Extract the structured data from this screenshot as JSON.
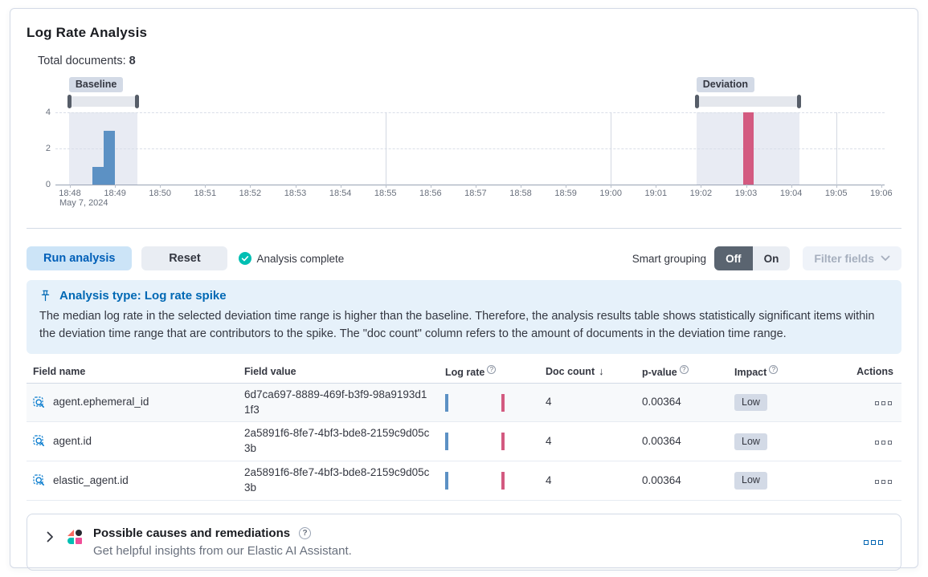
{
  "app": {
    "title": "Log Rate Analysis"
  },
  "summary": {
    "total_documents_label": "Total documents:",
    "total_documents_value": "8"
  },
  "chart_data": {
    "type": "bar",
    "x_ticks": [
      "18:48",
      "18:49",
      "18:50",
      "18:51",
      "18:52",
      "18:53",
      "18:54",
      "18:55",
      "18:56",
      "18:57",
      "18:58",
      "18:59",
      "19:00",
      "19:01",
      "19:02",
      "19:03",
      "19:04",
      "19:05",
      "19:06"
    ],
    "x_axis_date_label": "May 7, 2024",
    "y_ticks": [
      0,
      2,
      4
    ],
    "ylim": [
      0,
      4
    ],
    "grid": {
      "horizontal": "dashed at 2 and 4",
      "vertical": "solid at 5-minute marks"
    },
    "vertical_gridline_minutes": [
      7,
      12,
      17
    ],
    "series": [
      {
        "name": "baseline",
        "color": "#5c91c4",
        "bars": [
          {
            "x_min": 0.5,
            "width_min": 0.24,
            "value": 1
          },
          {
            "x_min": 0.75,
            "width_min": 0.24,
            "value": 3
          }
        ]
      },
      {
        "name": "deviation",
        "color": "#d35a80",
        "bars": [
          {
            "x_min": 14.93,
            "width_min": 0.24,
            "value": 4
          }
        ]
      }
    ],
    "brushes": [
      {
        "name": "baseline",
        "label": "Baseline",
        "start_min": -0.02,
        "end_min": 1.5
      },
      {
        "name": "deviation",
        "label": "Deviation",
        "start_min": 13.9,
        "end_min": 16.18
      }
    ]
  },
  "toolbar": {
    "run_analysis_label": "Run analysis",
    "reset_label": "Reset",
    "status_label": "Analysis complete",
    "smart_grouping_label": "Smart grouping",
    "smart_grouping_off": "Off",
    "smart_grouping_on": "On",
    "smart_grouping_selected": "Off",
    "filter_fields_label": "Filter fields",
    "filter_fields_enabled": false
  },
  "callout": {
    "title": "Analysis type: Log rate spike",
    "body": "The median log rate in the selected deviation time range is higher than the baseline. Therefore, the analysis results table shows statistically significant items within the deviation time range that are contributors to the spike. The \"doc count\" column refers to the amount of documents in the deviation time range."
  },
  "table": {
    "columns": [
      {
        "label": "Field name"
      },
      {
        "label": "Field value"
      },
      {
        "label": "Log rate",
        "info_icon": true
      },
      {
        "label": "Doc count",
        "sorted": "desc"
      },
      {
        "label": "p-value",
        "info_icon": true
      },
      {
        "label": "Impact",
        "info_icon": true
      },
      {
        "label": "Actions"
      }
    ],
    "rows": [
      {
        "field_name": "agent.ephemeral_id",
        "field_value": "6d7ca697-8889-469f-b3f9-98a9193d11f3",
        "log_rate_bars": [
          "baseline",
          "deviation"
        ],
        "doc_count": "4",
        "p_value": "0.00364",
        "impact": "Low"
      },
      {
        "field_name": "agent.id",
        "field_value": "2a5891f6-8fe7-4bf3-bde8-2159c9d05c3b",
        "log_rate_bars": [
          "baseline",
          "deviation"
        ],
        "doc_count": "4",
        "p_value": "0.00364",
        "impact": "Low"
      },
      {
        "field_name": "elastic_agent.id",
        "field_value": "2a5891f6-8fe7-4bf3-bde8-2159c9d05c3b",
        "log_rate_bars": [
          "baseline",
          "deviation"
        ],
        "doc_count": "4",
        "p_value": "0.00364",
        "impact": "Low"
      }
    ]
  },
  "ai_panel": {
    "title": "Possible causes and remediations",
    "subtitle": "Get helpful insights from our Elastic AI Assistant."
  },
  "colors": {
    "baseline_bar": "#5c91c4",
    "deviation_bar": "#d35a80",
    "accent_blue": "#0068b4",
    "success_teal": "#00bfb3",
    "badge_bg": "#d3dae6",
    "callout_bg": "#e6f1fa"
  },
  "icons": {
    "status": "check-in-circle",
    "callout": "pin",
    "field_name": "pattern-analysis-magnifier",
    "row_actions": "boxes-horizontal",
    "filter_fields": "chevron-down",
    "ai_panel_left": "chevron-right",
    "ai_logo": "elastic-ai-assistant",
    "ai_help": "question-in-circle",
    "ai_actions": "boxes-horizontal-blue"
  }
}
